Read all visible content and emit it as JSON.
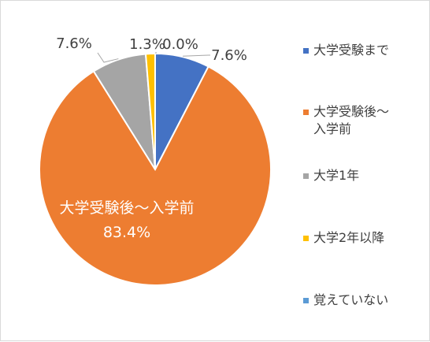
{
  "chart_data": {
    "type": "pie",
    "slices": [
      {
        "label": "大学受験まで",
        "value": 7.6,
        "label_text": "7.6%",
        "color": "#4472c4"
      },
      {
        "label": "大学受験後～\n入学前",
        "value": 83.4,
        "label_text": "83.4%",
        "color": "#ed7d31"
      },
      {
        "label": "大学1年",
        "value": 7.6,
        "label_text": "7.6%",
        "color": "#a5a5a5"
      },
      {
        "label": "大学2年以降",
        "value": 1.3,
        "label_text": "1.3%",
        "color": "#ffc000"
      },
      {
        "label": "覚えていない",
        "value": 0.0,
        "label_text": "0.0%",
        "color": "#5b9bd5"
      }
    ],
    "inside_label": {
      "category": "大学受験後～入学前",
      "value": "83.4%"
    },
    "legend_position": "right"
  }
}
